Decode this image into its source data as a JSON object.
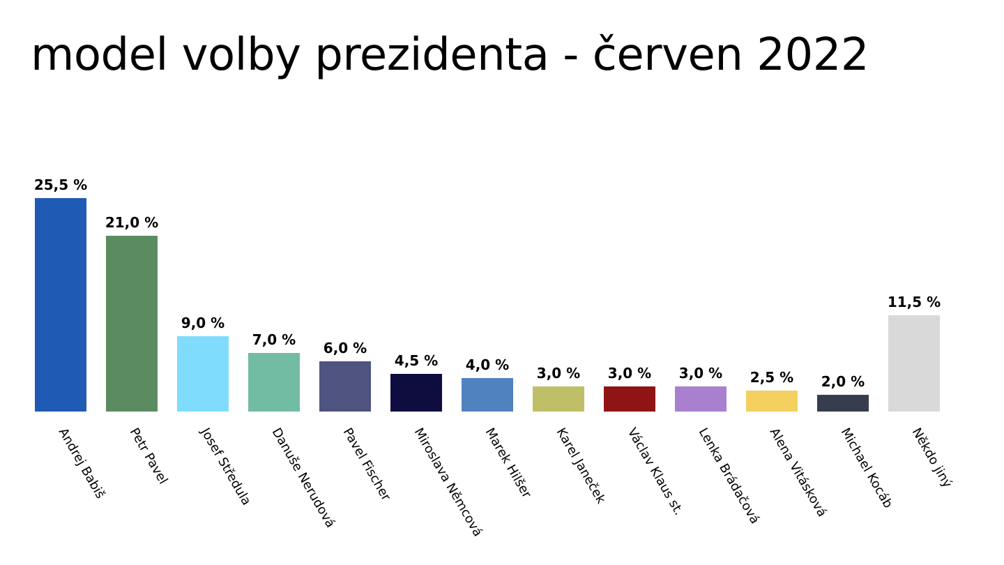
{
  "title": "model volby prezidenta - červen 2022",
  "chart_data": {
    "type": "bar",
    "title": "model volby prezidenta - červen 2022",
    "xlabel": "",
    "ylabel": "",
    "ylim": [
      0,
      26
    ],
    "grid": false,
    "legend": "none",
    "value_suffix": " %",
    "categories": [
      "Andrej Babiš",
      "Petr Pavel",
      "Josef Středula",
      "Danuše Nerudová",
      "Pavel Fischer",
      "Miroslava Němcová",
      "Marek Hilšer",
      "Karel Janeček",
      "Václav Klaus st.",
      "Lenka Brádačová",
      "Alena Vitásková",
      "Michael Kocáb",
      "Někdo jiný"
    ],
    "values": [
      25.5,
      21.0,
      9.0,
      7.0,
      6.0,
      4.5,
      4.0,
      3.0,
      3.0,
      3.0,
      2.5,
      2.0,
      11.5
    ],
    "value_labels": [
      "25,5 %",
      "21,0 %",
      "9,0 %",
      "7,0 %",
      "6,0 %",
      "4,5 %",
      "4,0 %",
      "3,0 %",
      "3,0 %",
      "3,0 %",
      "2,5 %",
      "2,0 %",
      "11,5 %"
    ],
    "colors": [
      "#1f5bb5",
      "#5b8c60",
      "#80dcfc",
      "#72bca4",
      "#4e547f",
      "#0f0c3f",
      "#4f82bf",
      "#bfbf68",
      "#8f1514",
      "#a97fd0",
      "#f3d060",
      "#363d4f",
      "#d9d9d9"
    ]
  }
}
